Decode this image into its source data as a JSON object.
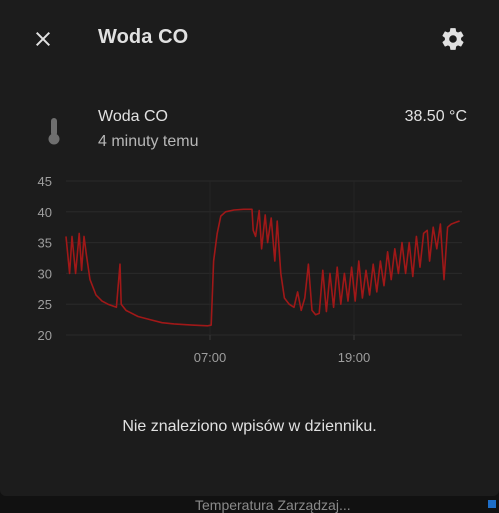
{
  "dialog": {
    "title": "Woda CO"
  },
  "icons": {
    "close": "close-icon",
    "settings": "cog-icon",
    "entity": "thermometer-icon"
  },
  "entity": {
    "name": "Woda CO",
    "last_changed": "4 minuty temu",
    "state": "38.50 °C"
  },
  "logbook": {
    "empty_message": "Nie znaleziono wpisów w dzienniku."
  },
  "background": {
    "partial_text": "Temperatura Zarządzaj..."
  },
  "colors": {
    "series": "#a01818",
    "background": "#1c1c1c",
    "text": "#e1e1e1"
  },
  "chart_data": {
    "type": "line",
    "ylim": [
      20,
      45
    ],
    "yticks": [
      20,
      25,
      30,
      35,
      40,
      45
    ],
    "xtick_labels": [
      "07:00",
      "19:00"
    ],
    "series": [
      {
        "name": "",
        "points": [
          [
            0,
            36
          ],
          [
            0.3,
            30
          ],
          [
            0.5,
            36
          ],
          [
            0.8,
            30
          ],
          [
            1.1,
            36.5
          ],
          [
            1.3,
            30.5
          ],
          [
            1.5,
            36
          ],
          [
            1.7,
            33
          ],
          [
            2.0,
            29
          ],
          [
            2.5,
            26.5
          ],
          [
            3.0,
            25.5
          ],
          [
            3.5,
            25
          ],
          [
            4.2,
            24.5
          ],
          [
            4.5,
            31.5
          ],
          [
            4.6,
            25
          ],
          [
            5.0,
            24
          ],
          [
            6.0,
            23
          ],
          [
            7.0,
            22.5
          ],
          [
            8.0,
            22
          ],
          [
            9.0,
            21.8
          ],
          [
            10.5,
            21.6
          ],
          [
            11.8,
            21.5
          ],
          [
            12.1,
            21.6
          ],
          [
            12.3,
            32
          ],
          [
            12.6,
            36.5
          ],
          [
            12.9,
            39.3
          ],
          [
            13.3,
            40
          ],
          [
            14.0,
            40.3
          ],
          [
            14.8,
            40.4
          ],
          [
            15.5,
            40.4
          ],
          [
            15.6,
            37
          ],
          [
            15.8,
            36
          ],
          [
            16.1,
            40.2
          ],
          [
            16.3,
            34
          ],
          [
            16.6,
            39.5
          ],
          [
            16.8,
            35
          ],
          [
            17.1,
            39
          ],
          [
            17.4,
            32
          ],
          [
            17.6,
            38.5
          ],
          [
            17.9,
            30
          ],
          [
            18.2,
            26
          ],
          [
            18.6,
            25
          ],
          [
            19.0,
            24.5
          ],
          [
            19.3,
            27
          ],
          [
            19.6,
            24
          ],
          [
            19.9,
            26
          ],
          [
            20.2,
            31.5
          ],
          [
            20.5,
            24
          ],
          [
            20.8,
            23.3
          ],
          [
            21.1,
            23.5
          ],
          [
            21.4,
            30.5
          ],
          [
            21.7,
            23.8
          ],
          [
            22.0,
            30
          ],
          [
            22.3,
            24.5
          ],
          [
            22.6,
            31
          ],
          [
            22.9,
            25
          ],
          [
            23.2,
            30
          ],
          [
            23.5,
            25.5
          ],
          [
            23.8,
            31
          ],
          [
            24.1,
            25.5
          ],
          [
            24.4,
            32
          ],
          [
            24.7,
            26
          ],
          [
            25.0,
            30.5
          ],
          [
            25.3,
            26.5
          ],
          [
            25.6,
            31.5
          ],
          [
            25.9,
            27
          ],
          [
            26.2,
            32
          ],
          [
            26.5,
            28
          ],
          [
            26.8,
            33.5
          ],
          [
            27.1,
            29
          ],
          [
            27.4,
            34
          ],
          [
            27.7,
            30
          ],
          [
            28.0,
            35
          ],
          [
            28.3,
            30
          ],
          [
            28.6,
            35
          ],
          [
            28.9,
            29.5
          ],
          [
            29.2,
            36
          ],
          [
            29.5,
            31
          ],
          [
            29.8,
            36.5
          ],
          [
            30.1,
            37
          ],
          [
            30.3,
            32
          ],
          [
            30.6,
            37.5
          ],
          [
            30.9,
            34
          ],
          [
            31.2,
            38
          ],
          [
            31.5,
            29
          ],
          [
            31.8,
            37.5
          ],
          [
            32.1,
            38
          ],
          [
            32.5,
            38.3
          ],
          [
            32.8,
            38.5
          ]
        ]
      }
    ]
  }
}
